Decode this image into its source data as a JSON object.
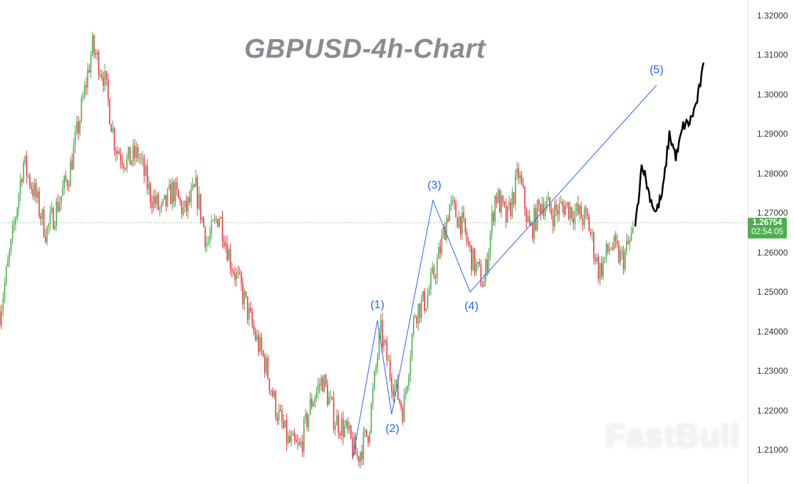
{
  "chart_data": {
    "type": "candlestick",
    "title": "GBPUSD-4h-Chart",
    "ylim": [
      1.205,
      1.325
    ],
    "y_ticks": [
      "1.32000",
      "1.31000",
      "1.30000",
      "1.29000",
      "1.28000",
      "1.27000",
      "1.26000",
      "1.25000",
      "1.24000",
      "1.23000",
      "1.22000",
      "1.21000"
    ],
    "current_price": "1.26754",
    "countdown": "02:54:05",
    "up_color": "#26a69a",
    "candle_up_color": "#4caf50",
    "candle_down_color": "#f23645",
    "wave_color": "#2962ff",
    "projection_color": "#000000",
    "closes": [
      1.245,
      1.262,
      1.283,
      1.275,
      1.265,
      1.272,
      1.28,
      1.295,
      1.312,
      1.305,
      1.287,
      1.283,
      1.285,
      1.275,
      1.27,
      1.276,
      1.27,
      1.276,
      1.262,
      1.27,
      1.258,
      1.25,
      1.24,
      1.232,
      1.22,
      1.212,
      1.21,
      1.222,
      1.228,
      1.218,
      1.215,
      1.208,
      1.215,
      1.24,
      1.228,
      1.22,
      1.245,
      1.248,
      1.258,
      1.272,
      1.268,
      1.258,
      1.252,
      1.275,
      1.268,
      1.28,
      1.265,
      1.273,
      1.27,
      1.272,
      1.27,
      1.268,
      1.255,
      1.262,
      1.258,
      1.265
    ],
    "projection": [
      1.266,
      1.283,
      1.275,
      1.27,
      1.275,
      1.29,
      1.284,
      1.292,
      1.293,
      1.298,
      1.307
    ],
    "waves": [
      {
        "label": "",
        "price": 1.2075
      },
      {
        "label": "(1)",
        "price": 1.2428
      },
      {
        "label": "(2)",
        "price": 1.219
      },
      {
        "label": "(3)",
        "price": 1.2732
      },
      {
        "label": "(4)",
        "price": 1.25
      },
      {
        "label": "(5)",
        "price": 1.3024
      }
    ]
  },
  "watermark": "FastBull"
}
